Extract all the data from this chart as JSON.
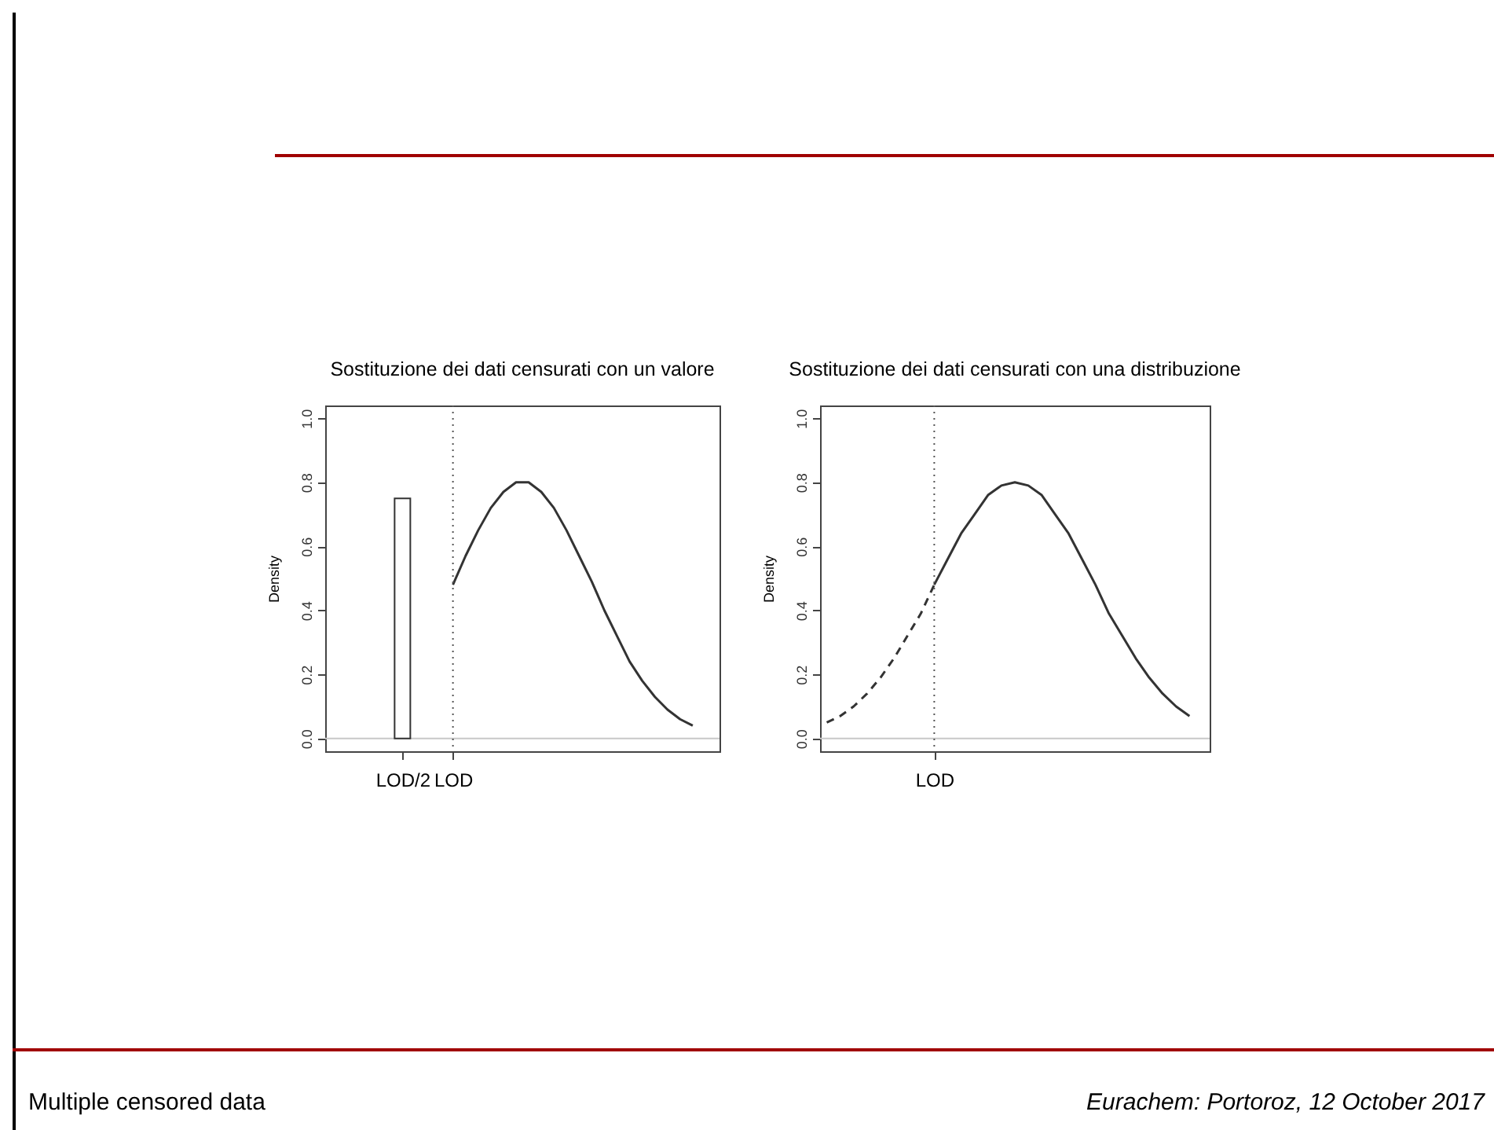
{
  "chart_data": [
    {
      "type": "line",
      "title": "Sostituzione dei dati censurati con un valore",
      "ylabel": "Density",
      "ylim": [
        -0.04,
        1.04
      ],
      "categories": [
        null,
        null,
        null,
        null,
        null,
        "LOD/2",
        null,
        null,
        null,
        "LOD",
        null,
        null,
        null,
        null,
        null,
        null,
        null,
        null,
        null,
        null,
        null,
        null,
        null,
        null,
        null,
        null,
        null,
        null,
        null,
        null
      ],
      "yticks": [
        {
          "value": 0,
          "label": "0.0"
        },
        {
          "value": 0.2,
          "label": "0.2"
        },
        {
          "value": 0.4,
          "label": "0.4"
        },
        {
          "value": 0.6,
          "label": "0.6"
        },
        {
          "value": 0.8,
          "label": "0.8"
        },
        {
          "value": 1,
          "label": "1.0"
        }
      ],
      "series": [
        {
          "type": "bar",
          "color": "#333333",
          "values": [
            null,
            null,
            null,
            null,
            null,
            0.75,
            null,
            null,
            null,
            null,
            null,
            null,
            null,
            null,
            null,
            null,
            null,
            null,
            null,
            null,
            null,
            null,
            null,
            null,
            null,
            null,
            null,
            null,
            null,
            null
          ]
        },
        {
          "color": "#333333",
          "line_style": "solid",
          "values": [
            null,
            null,
            null,
            null,
            null,
            null,
            null,
            null,
            null,
            0.48,
            0.57,
            0.65,
            0.72,
            0.77,
            0.8,
            0.8,
            0.77,
            0.72,
            0.65,
            0.57,
            0.49,
            0.4,
            0.32,
            0.24,
            0.18,
            0.13,
            0.09,
            0.06,
            0.04,
            null
          ]
        }
      ],
      "ref_lines": [
        {
          "axis": "y",
          "value": 0,
          "color": "#c8c8c8",
          "line_style": "solid"
        },
        {
          "axis": "x",
          "value": "LOD",
          "color": "#555555",
          "line_style": "dotted"
        }
      ],
      "annotations": [
        "Multiple censored data",
        "Eurachem: Portoroz, 12 October 2017"
      ]
    },
    {
      "type": "line",
      "title": "Sostituzione dei dati censurati con una distribuzione",
      "ylabel": "Density",
      "ylim": [
        -0.04,
        1.04
      ],
      "categories": [
        null,
        null,
        null,
        null,
        null,
        null,
        null,
        null,
        "LOD",
        null,
        null,
        null,
        null,
        null,
        null,
        null,
        null,
        null,
        null,
        null,
        null,
        null,
        null,
        null,
        null,
        null,
        null,
        null,
        null
      ],
      "yticks": [
        {
          "value": 0,
          "label": "0.0"
        },
        {
          "value": 0.2,
          "label": "0.2"
        },
        {
          "value": 0.4,
          "label": "0.4"
        },
        {
          "value": 0.6,
          "label": "0.6"
        },
        {
          "value": 0.8,
          "label": "0.8"
        },
        {
          "value": 1,
          "label": "1.0"
        }
      ],
      "series": [
        {
          "color": "#333333",
          "line_style": "dashed",
          "values": [
            0.05,
            0.07,
            0.1,
            0.14,
            0.19,
            0.25,
            0.32,
            0.39,
            0.48,
            null,
            null,
            null,
            null,
            null,
            null,
            null,
            null,
            null,
            null,
            null,
            null,
            null,
            null,
            null,
            null,
            null,
            null,
            null,
            null
          ]
        },
        {
          "color": "#333333",
          "line_style": "solid",
          "values": [
            null,
            null,
            null,
            null,
            null,
            null,
            null,
            null,
            0.48,
            0.56,
            0.64,
            0.7,
            0.76,
            0.79,
            0.8,
            0.79,
            0.76,
            0.7,
            0.64,
            0.56,
            0.48,
            0.39,
            0.32,
            0.25,
            0.19,
            0.14,
            0.1,
            0.07,
            null
          ]
        }
      ],
      "ref_lines": [
        {
          "axis": "y",
          "value": 0,
          "color": "#c8c8c8",
          "line_style": "solid"
        },
        {
          "axis": "x",
          "value": "LOD",
          "color": "#555555",
          "line_style": "dotted"
        }
      ]
    }
  ]
}
